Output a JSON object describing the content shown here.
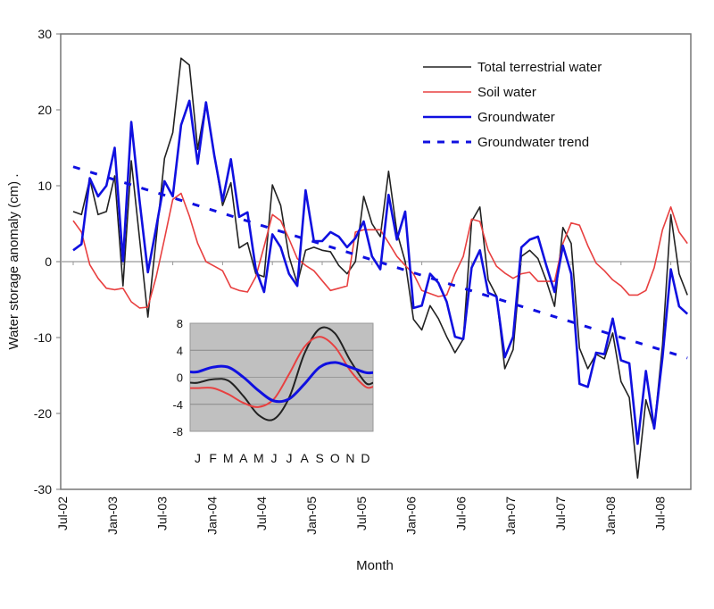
{
  "chart_data": [
    {
      "type": "line",
      "title": "",
      "xlabel": "Month",
      "ylabel": "Water storage anomaly (cm) .",
      "ylim": [
        -30,
        30
      ],
      "yticks": [
        "30",
        "20",
        "10",
        "0",
        "-10",
        "-20",
        "-30"
      ],
      "xtick_labels": [
        "Jul-02",
        "Jan-03",
        "Jul-03",
        "Jan-04",
        "Jul-04",
        "Jan-05",
        "Jul-05",
        "Jan-06",
        "Jul-06",
        "Jan-07",
        "Jul-07",
        "Jan-08",
        "Jul-08"
      ],
      "x_start": "Jul-02",
      "x_step": "1 month",
      "grid": false,
      "zero_line": true,
      "legend_position": "top-right",
      "series": [
        {
          "name": "Total terrestrial water",
          "color": "#222222",
          "style": "solid",
          "values": [
            6.6,
            6.2,
            10.9,
            6.2,
            6.6,
            11.3,
            -3.2,
            13.3,
            3,
            -7.3,
            3,
            13.6,
            17,
            26.8,
            25.9,
            14.8,
            21,
            14,
            7.4,
            10.4,
            1.8,
            2.5,
            -1.6,
            -2,
            10.1,
            7.4,
            0.7,
            -2.9,
            1.5,
            1.9,
            1.5,
            1.3,
            -0.5,
            -1.6,
            0,
            8.6,
            5,
            3.3,
            11.9,
            3.9,
            0,
            -7.6,
            -9,
            -5.8,
            -7.5,
            -9.9,
            -12,
            -10.2,
            5.3,
            7.2,
            -2.4,
            -4.5,
            -14.1,
            -11.6,
            0.7,
            1.5,
            0.4,
            -2.5,
            -5.9,
            4.5,
            2.4,
            -11.4,
            -14.1,
            -12.2,
            -12.8,
            -9.4,
            -15.8,
            -17.9,
            -28.5,
            -18.2,
            -22,
            -11,
            6.2,
            -1.6,
            -4.4
          ]
        },
        {
          "name": "Soil water",
          "color": "#e84040",
          "style": "solid",
          "values": [
            5.4,
            3.9,
            -0.4,
            -2.2,
            -3.5,
            -3.7,
            -3.5,
            -5.3,
            -6.1,
            -6,
            -2,
            3,
            8.2,
            9,
            6,
            2.4,
            0,
            -0.6,
            -1.2,
            -3.4,
            -3.8,
            -4,
            -2,
            2,
            6.2,
            5.4,
            3,
            0.4,
            -0.5,
            -1.2,
            -2.5,
            -3.8,
            -3.5,
            -3.2,
            3.9,
            4.2,
            4.2,
            4.2,
            2.5,
            0.7,
            -0.5,
            -1.6,
            -3.8,
            -4.2,
            -4.6,
            -4.4,
            -1.6,
            0.7,
            5.6,
            5.3,
            1.5,
            -0.6,
            -1.5,
            -2.2,
            -1.6,
            -1.4,
            -2.6,
            -2.6,
            -2.6,
            2.4,
            5.1,
            4.8,
            2.1,
            -0.2,
            -1.2,
            -2.4,
            -3.2,
            -4.4,
            -4.4,
            -3.8,
            -0.8,
            4.2,
            7.2,
            3.9,
            2.4
          ]
        },
        {
          "name": "Groundwater",
          "color": "#1010e0",
          "style": "solid",
          "values": [
            1.5,
            2.3,
            11,
            8.6,
            10,
            15,
            0,
            18.4,
            8,
            -1.4,
            4.5,
            10.6,
            8.6,
            18,
            21.2,
            12.9,
            21,
            14,
            8,
            13.5,
            5.9,
            6.5,
            -1,
            -4,
            3.6,
            1.9,
            -1.6,
            -3.2,
            9.4,
            2.7,
            2.7,
            3.9,
            3.3,
            1.9,
            3.1,
            5.3,
            0.7,
            -1,
            8.8,
            2.9,
            6.6,
            -6.1,
            -5.8,
            -1.6,
            -2.8,
            -5.3,
            -9.9,
            -10.2,
            -0.8,
            1.5,
            -4.1,
            -4.6,
            -12.6,
            -9.9,
            1.9,
            2.9,
            3.3,
            -0.5,
            -4,
            2.1,
            -1.6,
            -16.1,
            -16.5,
            -12,
            -12.2,
            -7.5,
            -13,
            -13.4,
            -24,
            -14.4,
            -22,
            -12.6,
            -1,
            -5.9,
            -6.9
          ]
        },
        {
          "name": "Groundwater trend",
          "color": "#1010e0",
          "style": "dashed",
          "start_value": 12.5,
          "end_value": -12.7
        }
      ]
    },
    {
      "type": "line",
      "title": "",
      "ylim": [
        -8,
        8
      ],
      "yticks": [
        "8",
        "4",
        "0",
        "-4",
        "-8"
      ],
      "categories": [
        "J",
        "F",
        "M",
        "A",
        "M",
        "J",
        "J",
        "A",
        "S",
        "O",
        "N",
        "D"
      ],
      "grid": true,
      "background": "#c0c0c0",
      "series": [
        {
          "color": "#222222",
          "values": [
            -0.8,
            -0.3,
            -0.5,
            -2.8,
            -5.6,
            -6.2,
            -3,
            3.5,
            7.2,
            6.5,
            2.5,
            -0.8
          ]
        },
        {
          "color": "#e84040",
          "values": [
            -1.6,
            -1.6,
            -2.5,
            -3.8,
            -4.4,
            -3.2,
            0.5,
            4.5,
            6,
            4.5,
            1,
            -1.4
          ]
        },
        {
          "color": "#1010e0",
          "values": [
            0.8,
            1.5,
            1.5,
            0,
            -2,
            -3.5,
            -3.2,
            -1,
            1.5,
            2.2,
            1.5,
            0.7
          ]
        }
      ]
    }
  ]
}
